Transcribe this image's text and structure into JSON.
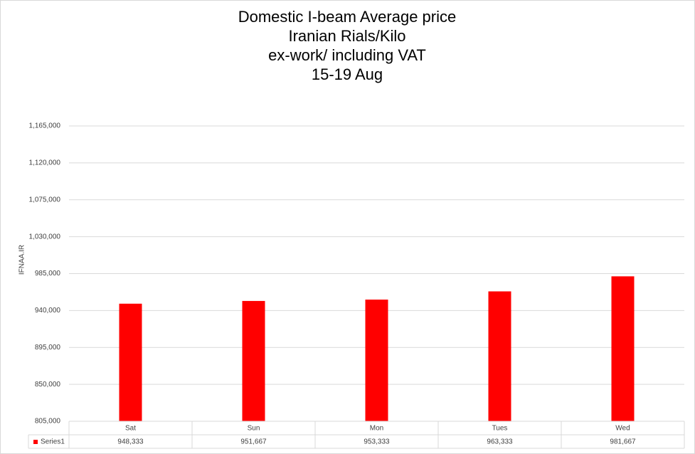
{
  "chart_data": {
    "type": "bar",
    "title": [
      "Domestic I-beam Average price",
      "Iranian Rials/Kilo",
      "ex-work/ including VAT",
      "15-19 Aug"
    ],
    "y_label": "IFNAA.IR",
    "categories": [
      "Sat",
      "Sun",
      "Mon",
      "Tues",
      "Wed"
    ],
    "series": [
      {
        "name": "Series1",
        "color": "#ff0000",
        "values": [
          948333,
          951667,
          953333,
          963333,
          981667
        ],
        "value_labels": [
          "948,333",
          "951,667",
          "953,333",
          "963,333",
          "981,667"
        ]
      }
    ],
    "ylim": [
      805000,
      1165000
    ],
    "yticks": [
      {
        "value": 805000,
        "label": "805,000"
      },
      {
        "value": 850000,
        "label": "850,000"
      },
      {
        "value": 895000,
        "label": "895,000"
      },
      {
        "value": 940000,
        "label": "940,000"
      },
      {
        "value": 985000,
        "label": "985,000"
      },
      {
        "value": 1030000,
        "label": "1,030,000"
      },
      {
        "value": 1075000,
        "label": "1,075,000"
      },
      {
        "value": 1120000,
        "label": "1,120,000"
      },
      {
        "value": 1165000,
        "label": "1,165,000"
      }
    ],
    "grid": true,
    "data_table": true
  }
}
